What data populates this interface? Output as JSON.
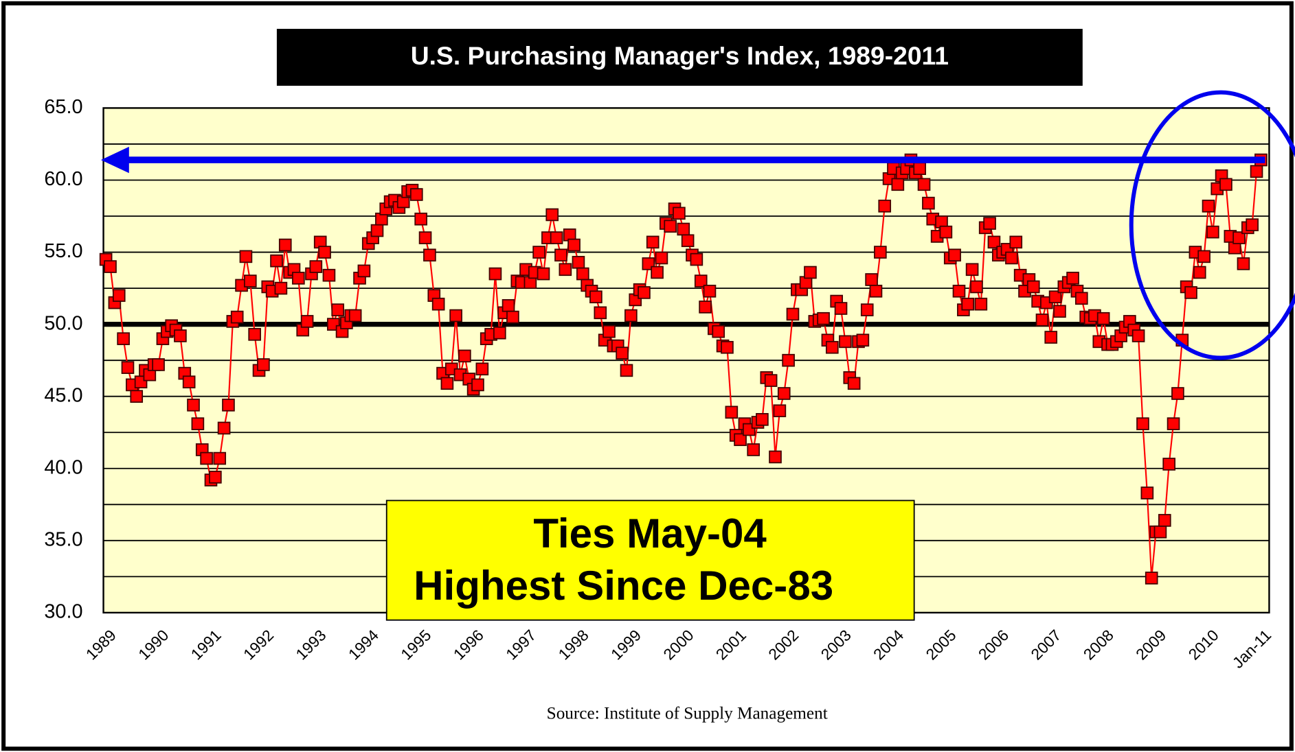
{
  "chart_data": {
    "type": "line",
    "title": "U.S. Purchasing Manager's Index, 1989-2011",
    "source": "Source: Institute of Supply Management",
    "annotations": [
      "Ties May-04",
      "Highest Since Dec-83"
    ],
    "reference_line": 50,
    "arrow_level": 61.4,
    "color": "#ff0000",
    "ylim": [
      30,
      65
    ],
    "yticks": [
      {
        "value": 30,
        "label": "30.0"
      },
      {
        "value": 35,
        "label": "35.0"
      },
      {
        "value": 40,
        "label": "40.0"
      },
      {
        "value": 45,
        "label": "45.0"
      },
      {
        "value": 50,
        "label": "50.0"
      },
      {
        "value": 55,
        "label": "55.0"
      },
      {
        "value": 60,
        "label": "60.0"
      },
      {
        "value": 65,
        "label": "65.0"
      }
    ],
    "minor_gridlines": [
      32.5,
      37.5,
      42.5,
      47.5,
      52.5,
      57.5,
      62.5
    ],
    "grid": true,
    "categories": [
      "1989",
      null,
      null,
      null,
      null,
      null,
      null,
      null,
      null,
      null,
      null,
      null,
      "1990",
      null,
      null,
      null,
      null,
      null,
      null,
      null,
      null,
      null,
      null,
      null,
      "1991",
      null,
      null,
      null,
      null,
      null,
      null,
      null,
      null,
      null,
      null,
      null,
      "1992",
      null,
      null,
      null,
      null,
      null,
      null,
      null,
      null,
      null,
      null,
      null,
      "1993",
      null,
      null,
      null,
      null,
      null,
      null,
      null,
      null,
      null,
      null,
      null,
      "1994",
      null,
      null,
      null,
      null,
      null,
      null,
      null,
      null,
      null,
      null,
      null,
      "1995",
      null,
      null,
      null,
      null,
      null,
      null,
      null,
      null,
      null,
      null,
      null,
      "1996",
      null,
      null,
      null,
      null,
      null,
      null,
      null,
      null,
      null,
      null,
      null,
      "1997",
      null,
      null,
      null,
      null,
      null,
      null,
      null,
      null,
      null,
      null,
      null,
      "1998",
      null,
      null,
      null,
      null,
      null,
      null,
      null,
      null,
      null,
      null,
      null,
      "1999",
      null,
      null,
      null,
      null,
      null,
      null,
      null,
      null,
      null,
      null,
      null,
      "2000",
      null,
      null,
      null,
      null,
      null,
      null,
      null,
      null,
      null,
      null,
      null,
      "2001",
      null,
      null,
      null,
      null,
      null,
      null,
      null,
      null,
      null,
      null,
      null,
      "2002",
      null,
      null,
      null,
      null,
      null,
      null,
      null,
      null,
      null,
      null,
      null,
      "2003",
      null,
      null,
      null,
      null,
      null,
      null,
      null,
      null,
      null,
      null,
      null,
      "2004",
      null,
      null,
      null,
      null,
      null,
      null,
      null,
      null,
      null,
      null,
      null,
      "2005",
      null,
      null,
      null,
      null,
      null,
      null,
      null,
      null,
      null,
      null,
      null,
      "2006",
      null,
      null,
      null,
      null,
      null,
      null,
      null,
      null,
      null,
      null,
      null,
      "2007",
      null,
      null,
      null,
      null,
      null,
      null,
      null,
      null,
      null,
      null,
      null,
      "2008",
      null,
      null,
      null,
      null,
      null,
      null,
      null,
      null,
      null,
      null,
      null,
      "2009",
      null,
      null,
      null,
      null,
      null,
      null,
      null,
      null,
      null,
      null,
      null,
      "2010",
      null,
      null,
      null,
      null,
      null,
      null,
      null,
      null,
      null,
      null,
      null,
      "Jan-11"
    ],
    "values": [
      54.5,
      54,
      51.5,
      52,
      49,
      47,
      45.8,
      45,
      46,
      46.8,
      46.5,
      47.2,
      47.2,
      49,
      49.5,
      49.9,
      49.6,
      49.2,
      46.6,
      46,
      44.4,
      43.1,
      41.3,
      40.7,
      39.2,
      39.4,
      40.7,
      42.8,
      44.4,
      50.2,
      50.5,
      52.7,
      54.7,
      53,
      49.3,
      46.8,
      47.2,
      52.6,
      52.3,
      54.4,
      52.5,
      55.5,
      53.6,
      53.8,
      53.2,
      49.6,
      50.2,
      53.5,
      54,
      55.7,
      55,
      53.4,
      50,
      51,
      49.5,
      50.1,
      50.6,
      50.6,
      53.2,
      53.7,
      55.6,
      56,
      56.5,
      57.3,
      58,
      58.5,
      58.6,
      58.1,
      58.5,
      59.2,
      59.3,
      59,
      57.3,
      56,
      54.8,
      52,
      51.4,
      46.6,
      45.9,
      46.9,
      50.6,
      46.5,
      47.8,
      46.2,
      45.5,
      45.8,
      46.9,
      49,
      49.3,
      53.5,
      49.4,
      50.8,
      51.3,
      50.5,
      53,
      52.9,
      53.8,
      52.9,
      53.6,
      55,
      53.5,
      56,
      57.6,
      56,
      54.8,
      53.8,
      56.2,
      55.5,
      54.3,
      53.5,
      52.7,
      52.3,
      51.9,
      50.8,
      48.9,
      49.5,
      48.5,
      48.5,
      48,
      46.8,
      50.6,
      51.7,
      52.4,
      52.2,
      54.2,
      55.7,
      53.6,
      54.6,
      57,
      56.8,
      58,
      57.7,
      56.6,
      55.8,
      54.8,
      54.5,
      53,
      51.2,
      52.3,
      49.7,
      49.5,
      48.5,
      48.4,
      43.9,
      42.3,
      42,
      43.1,
      42.7,
      41.3,
      43.2,
      43.4,
      46.3,
      46.1,
      40.8,
      44,
      45.2,
      47.5,
      50.7,
      52.4,
      52.4,
      52.9,
      53.6,
      50.2,
      50.3,
      50.4,
      48.9,
      48.4,
      51.6,
      51.1,
      48.8,
      46.3,
      45.9,
      48.8,
      48.9,
      51,
      53.1,
      52.3,
      55,
      58.2,
      60.1,
      60.8,
      59.7,
      60.5,
      60.8,
      61.4,
      60.5,
      60.8,
      59.7,
      58.4,
      57.3,
      56.1,
      57.1,
      56.4,
      54.6,
      54.8,
      52.3,
      51,
      51.4,
      53.8,
      52.6,
      51.4,
      56.7,
      57,
      55.7,
      54.8,
      55,
      55.2,
      54.6,
      55.7,
      53.4,
      52.3,
      53.1,
      52.6,
      51.6,
      50.3,
      51.5,
      49.1,
      51.9,
      50.9,
      52.6,
      52.9,
      53.2,
      52.3,
      51.8,
      50.5,
      50.4,
      50.6,
      48.8,
      50.4,
      48.6,
      48.6,
      48.8,
      49.2,
      49.8,
      50.2,
      49.6,
      49.2,
      43.1,
      38.3,
      32.4,
      35.6,
      35.6,
      36.4,
      40.3,
      43.1,
      45.2,
      48.9,
      52.6,
      52.2,
      55,
      53.6,
      54.7,
      58.2,
      56.4,
      59.4,
      60.3,
      59.7,
      56.1,
      55.3,
      56,
      54.2,
      56.7,
      56.9,
      60.6,
      61.4
    ]
  }
}
